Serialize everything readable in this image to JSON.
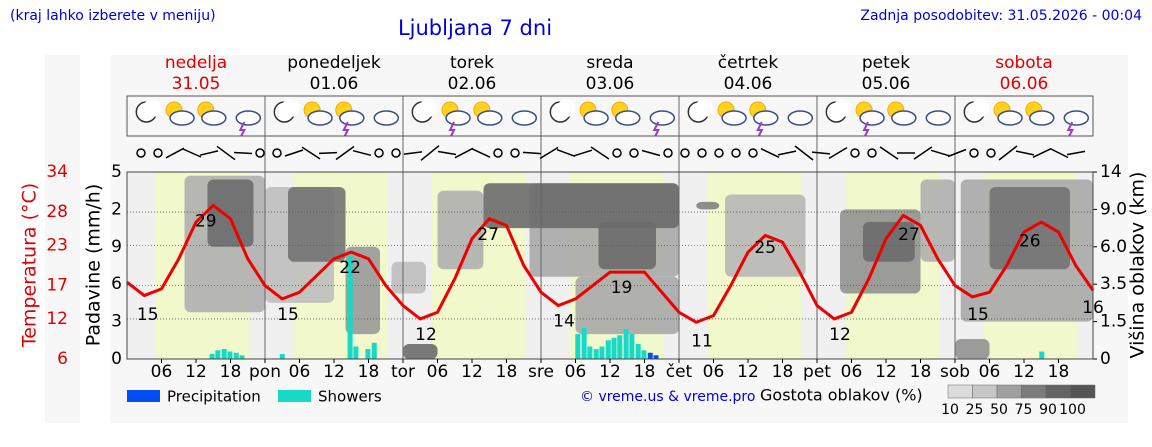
{
  "header": {
    "hint": "(kraj lahko izberete v meniju)",
    "title": "Ljubljana 7 dni",
    "updated": "Zadnja posodobitev: 31.05.2026 - 00:04"
  },
  "chart_data": {
    "type": "meteogram",
    "days": [
      {
        "name": "nedelja",
        "date": "31.05",
        "color": "#e00000"
      },
      {
        "name": "ponedeljek",
        "date": "01.06",
        "color": "#000000"
      },
      {
        "name": "torek",
        "date": "02.06",
        "color": "#000000"
      },
      {
        "name": "sreda",
        "date": "03.06",
        "color": "#000000"
      },
      {
        "name": "četrtek",
        "date": "04.06",
        "color": "#000000"
      },
      {
        "name": "petek",
        "date": "05.06",
        "color": "#000000"
      },
      {
        "name": "sobota",
        "date": "06.06",
        "color": "#e00000"
      }
    ],
    "xlim": [
      0,
      168
    ],
    "xticks": [
      {
        "value": 6,
        "label": "06"
      },
      {
        "value": 12,
        "label": "12"
      },
      {
        "value": 18,
        "label": "18"
      },
      {
        "value": 24,
        "label": "pon"
      },
      {
        "value": 30,
        "label": "06"
      },
      {
        "value": 36,
        "label": "12"
      },
      {
        "value": 42,
        "label": "18"
      },
      {
        "value": 48,
        "label": "tor"
      },
      {
        "value": 54,
        "label": "06"
      },
      {
        "value": 60,
        "label": "12"
      },
      {
        "value": 66,
        "label": "18"
      },
      {
        "value": 72,
        "label": "sre"
      },
      {
        "value": 78,
        "label": "06"
      },
      {
        "value": 84,
        "label": "12"
      },
      {
        "value": 90,
        "label": "18"
      },
      {
        "value": 96,
        "label": "čet"
      },
      {
        "value": 102,
        "label": "06"
      },
      {
        "value": 108,
        "label": "12"
      },
      {
        "value": 114,
        "label": "18"
      },
      {
        "value": 120,
        "label": "pet"
      },
      {
        "value": 126,
        "label": "06"
      },
      {
        "value": 132,
        "label": "12"
      },
      {
        "value": 138,
        "label": "18"
      },
      {
        "value": 144,
        "label": "sob"
      },
      {
        "value": 150,
        "label": "06"
      },
      {
        "value": 156,
        "label": "12"
      },
      {
        "value": 162,
        "label": "18"
      }
    ],
    "daylight_hours": [
      5,
      21.3
    ],
    "ylabel": "Temperatura (°C)",
    "ylim": [
      6,
      34
    ],
    "yticks": [
      34,
      28,
      23,
      17,
      12,
      6
    ],
    "precip_label": "Padavine (mm/h)",
    "precip_ylim": [
      0,
      15
    ],
    "precip_axis_labels": [
      "5",
      "2",
      "9",
      "6",
      "3",
      "0"
    ],
    "y2label": "Višina oblakov (km)",
    "y2ticks": [
      14,
      {
        "value": 9,
        "label": "9.0"
      },
      {
        "value": 6,
        "label": "6.0"
      },
      3.5,
      1.5,
      0
    ],
    "temperature": {
      "color": "#ee0000",
      "x": [
        0,
        3,
        6,
        9,
        12,
        15,
        18,
        21,
        24,
        27,
        30,
        33,
        36,
        39,
        42,
        45,
        48,
        51,
        54,
        57,
        60,
        63,
        66,
        69,
        72,
        75,
        78,
        81,
        84,
        87,
        90,
        93,
        96,
        99,
        102,
        105,
        108,
        111,
        114,
        117,
        120,
        123,
        126,
        129,
        132,
        135,
        138,
        141,
        144,
        147,
        150,
        153,
        156,
        159,
        162,
        165,
        168
      ],
      "values": [
        17.5,
        15.5,
        16.5,
        21,
        26.5,
        29,
        27,
        21,
        17,
        15,
        16,
        18.5,
        21,
        22,
        21,
        17,
        14,
        12,
        13,
        18,
        24,
        27,
        26,
        20,
        16,
        14,
        15,
        17,
        19,
        19,
        19,
        16,
        13,
        11.5,
        12.5,
        17,
        22,
        24.5,
        23.5,
        19,
        14,
        12,
        13,
        18,
        24,
        27.5,
        26,
        21,
        17,
        15.3,
        16,
        20,
        25,
        26.5,
        25,
        20,
        16.3
      ]
    },
    "temp_labels": [
      {
        "x": 3.6,
        "value": 15
      },
      {
        "x": 13.7,
        "value": 29
      },
      {
        "x": 28,
        "value": 15
      },
      {
        "x": 38.8,
        "value": 22
      },
      {
        "x": 52,
        "value": 12
      },
      {
        "x": 62.8,
        "value": 27
      },
      {
        "x": 76,
        "value": 14
      },
      {
        "x": 86,
        "value": 19
      },
      {
        "x": 100,
        "value": 11
      },
      {
        "x": 111,
        "value": 25
      },
      {
        "x": 124,
        "value": 12
      },
      {
        "x": 136,
        "value": 27
      },
      {
        "x": 148,
        "value": 15
      },
      {
        "x": 157,
        "value": 26
      },
      {
        "x": 168,
        "value": 16
      }
    ],
    "series": [
      {
        "name": "Precipitation",
        "color": "#0050f0",
        "x": [
          91,
          92
        ],
        "values": [
          0.5,
          0.3
        ]
      },
      {
        "name": "Showers",
        "color": "#18d8c8",
        "x": [
          14.8,
          15.8,
          16.9,
          17.9,
          19,
          20,
          27,
          38.8,
          39.8,
          41.9,
          43,
          78.4,
          79.5,
          80.5,
          81.6,
          82.6,
          83.7,
          84.7,
          85.7,
          86.8,
          87.8,
          88.9,
          89.9,
          159.1
        ],
        "values": [
          0.4,
          0.7,
          0.8,
          0.6,
          0.5,
          0.3,
          0.4,
          8.3,
          1,
          0.8,
          1.3,
          2,
          2.5,
          1,
          0.8,
          1,
          1.5,
          1.7,
          1.9,
          2.4,
          2,
          1.2,
          0.7,
          0.6
        ]
      }
    ],
    "clouds": [
      [
        10,
        24,
        2,
        13.5,
        40
      ],
      [
        14,
        22,
        6,
        13,
        85
      ],
      [
        24,
        36,
        2.5,
        12,
        30
      ],
      [
        28,
        38,
        5,
        12,
        80
      ],
      [
        38,
        44,
        1,
        6,
        55
      ],
      [
        46,
        52,
        3,
        5,
        30
      ],
      [
        54,
        62,
        4.5,
        11.5,
        40
      ],
      [
        70,
        96,
        4,
        12.5,
        45
      ],
      [
        62,
        96,
        7.5,
        12.5,
        85
      ],
      [
        82,
        92,
        4.5,
        8,
        85
      ],
      [
        78,
        96,
        1,
        4,
        45
      ],
      [
        99,
        103,
        9,
        10,
        70
      ],
      [
        104,
        118,
        4,
        11,
        35
      ],
      [
        124,
        138,
        3,
        9,
        60
      ],
      [
        128,
        137,
        5,
        8,
        85
      ],
      [
        138,
        144,
        5,
        13,
        40
      ],
      [
        145,
        168,
        1.5,
        13,
        45
      ],
      [
        150,
        164,
        4.5,
        12,
        80
      ],
      [
        48,
        54,
        0,
        0.6,
        85
      ],
      [
        144,
        150,
        0,
        0.8,
        60
      ]
    ],
    "copyright": "© vreme.us & vreme.pro",
    "density_label": "Gostota oblakov (%)",
    "density_scale": [
      10,
      25,
      50,
      75,
      90,
      100
    ]
  }
}
